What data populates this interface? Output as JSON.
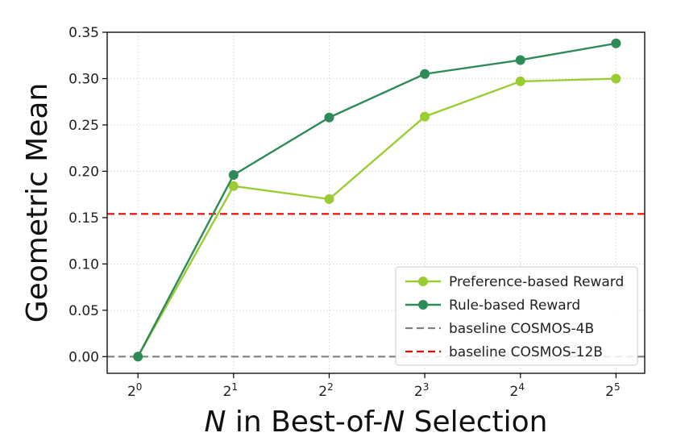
{
  "chart_data": {
    "type": "line",
    "xlabel": {
      "italic_lead": "N",
      "middle": " in Best-of-",
      "italic_tail": "N",
      "end": " Selection"
    },
    "ylabel": "Geometric Mean",
    "x_tick_labels": [
      {
        "base": "2",
        "exp": "0"
      },
      {
        "base": "2",
        "exp": "1"
      },
      {
        "base": "2",
        "exp": "2"
      },
      {
        "base": "2",
        "exp": "3"
      },
      {
        "base": "2",
        "exp": "4"
      },
      {
        "base": "2",
        "exp": "5"
      }
    ],
    "x": [
      1,
      2,
      4,
      8,
      16,
      32
    ],
    "x_scale": "log2",
    "xlim": [
      0.8,
      39.4
    ],
    "ylim": [
      -0.018,
      0.35
    ],
    "y_ticks": [
      "0.00",
      "0.05",
      "0.10",
      "0.15",
      "0.20",
      "0.25",
      "0.30",
      "0.35"
    ],
    "grid": true,
    "legend_position": "lower-right",
    "series": [
      {
        "name": "Preference-based Reward",
        "type": "line",
        "color": "#9acd32",
        "marker": "circle",
        "values": [
          0.0,
          0.184,
          0.17,
          0.259,
          0.297,
          0.3
        ]
      },
      {
        "name": "Rule-based Reward",
        "type": "line",
        "color": "#2e8b57",
        "marker": "circle",
        "values": [
          0.0,
          0.196,
          0.258,
          0.305,
          0.32,
          0.338
        ]
      },
      {
        "name": "baseline COSMOS-4B",
        "type": "hline",
        "color": "#808080",
        "dash": "dashed",
        "value": 0.0
      },
      {
        "name": "baseline COSMOS-12B",
        "type": "hline",
        "color": "#ff0000",
        "dash": "dashed",
        "value": 0.154
      }
    ]
  }
}
